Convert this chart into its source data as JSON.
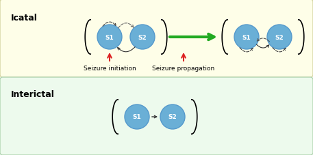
{
  "icatal_bg": "#fefee8",
  "icatal_border": "#d4d4a0",
  "interictal_bg": "#edfaed",
  "interictal_border": "#b0d4b0",
  "node_color": "#6aafd6",
  "node_edge_color": "#5599cc",
  "node_text_color": "white",
  "title_icatal": "Icatal",
  "title_interictal": "Interictal",
  "label_seizure_initiation": "Seizure initiation",
  "label_seizure_propagation": "Seizure propagation",
  "arrow_red": "#dd2222",
  "arrow_green": "#22aa22",
  "font_size_title": 9,
  "font_size_label": 6.5,
  "font_size_node": 6.5
}
